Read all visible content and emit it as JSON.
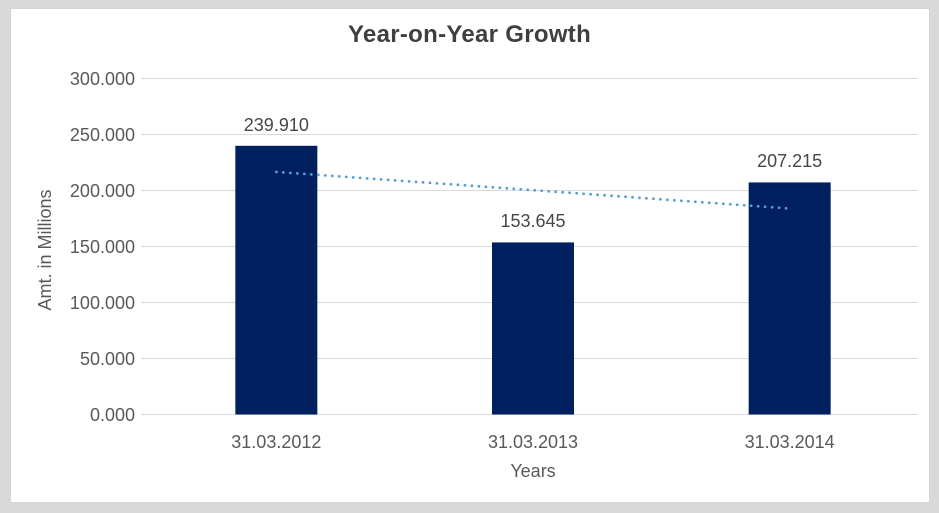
{
  "frame": {
    "background_color": "#d9d9d9",
    "chart_background_color": "#ffffff"
  },
  "chart_data": {
    "type": "bar",
    "title": "Year-on-Year Growth",
    "xlabel": "Years",
    "ylabel": "Amt. in Millions",
    "categories": [
      "31.03.2012",
      "31.03.2013",
      "31.03.2014"
    ],
    "values": [
      239.91,
      153.645,
      207.215
    ],
    "data_labels": [
      "239.910",
      "153.645",
      "207.215"
    ],
    "yticks": [
      "0.000",
      "50.000",
      "100.000",
      "150.000",
      "200.000",
      "250.000",
      "300.000"
    ],
    "ylim": [
      0,
      300
    ],
    "ytick_step": 50,
    "grid": true,
    "grid_color": "#d9d9d9",
    "bar_color": "#002060",
    "label_color": "#595959",
    "legend": "none",
    "trendline": {
      "type": "linear",
      "style": "dotted",
      "color": "#5B9BD5",
      "values": [
        216.6,
        200.3,
        183.9
      ]
    }
  }
}
